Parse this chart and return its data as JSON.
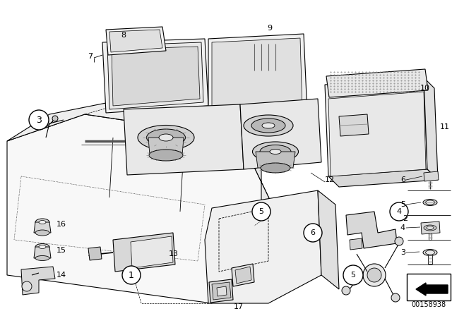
{
  "background_color": "#ffffff",
  "diagram_id": "00158938",
  "fig_width": 6.4,
  "fig_height": 4.48,
  "dpi": 100,
  "lc": "black",
  "lw": 0.8
}
